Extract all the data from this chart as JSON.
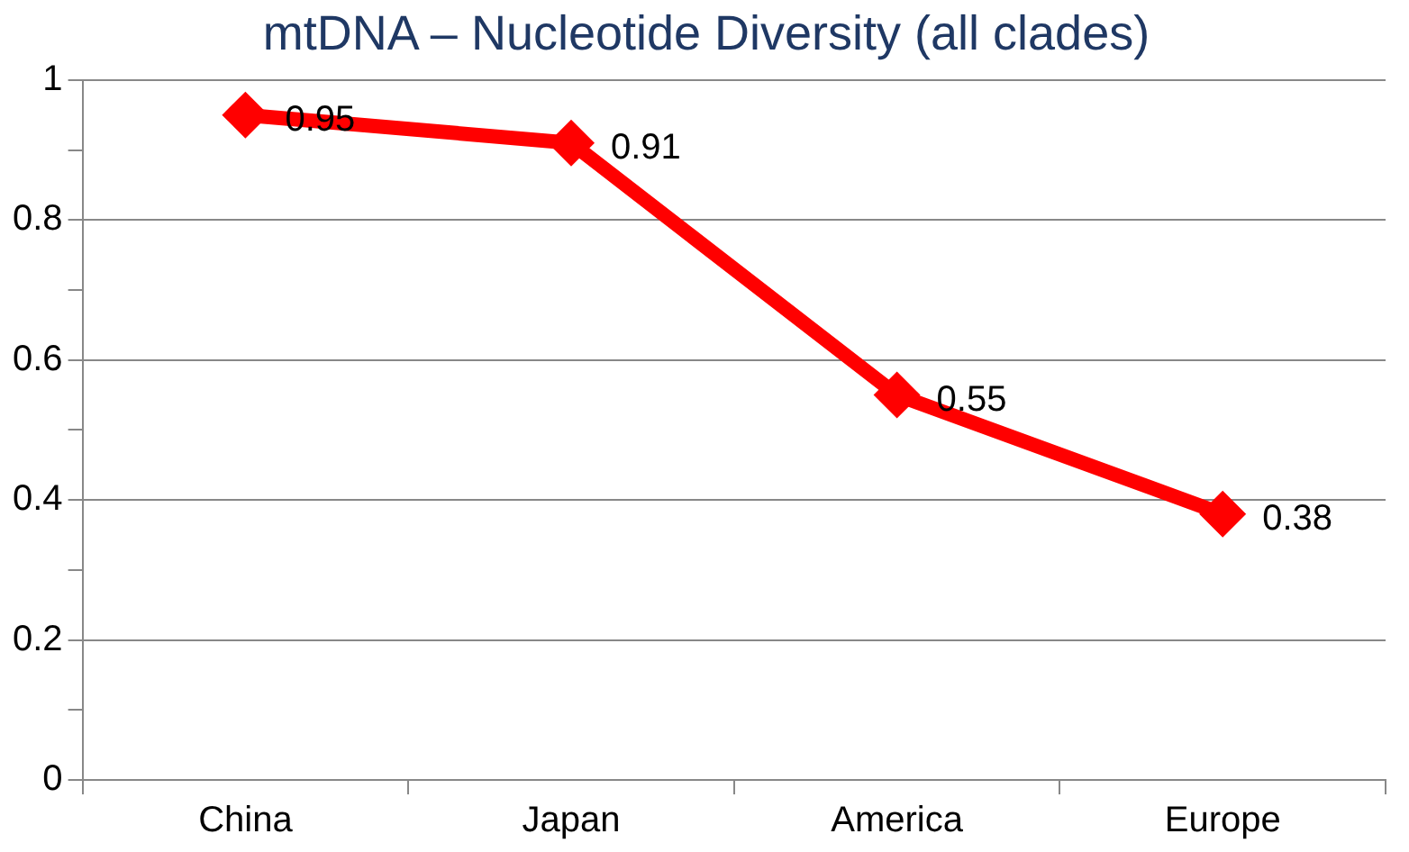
{
  "chart_data": {
    "type": "line",
    "title": "mtDNA – Nucleotide Diversity (all clades)",
    "categories": [
      "China",
      "Japan",
      "America",
      "Europe"
    ],
    "series": [
      {
        "color": "#ff0000",
        "values": [
          0.95,
          0.91,
          0.55,
          0.38
        ]
      }
    ],
    "ylim": [
      0,
      1
    ],
    "yticks": [
      0,
      {
        "value": 0.1,
        "label": null
      },
      0.2,
      {
        "value": 0.3,
        "label": null
      },
      0.4,
      {
        "value": 0.5,
        "label": null
      },
      0.6,
      {
        "value": 0.7,
        "label": null
      },
      0.8,
      {
        "value": 0.9,
        "label": null
      },
      1
    ],
    "grid": "y",
    "legend": false,
    "marker": "diamond",
    "line_style": "solid",
    "data_labels": true
  }
}
